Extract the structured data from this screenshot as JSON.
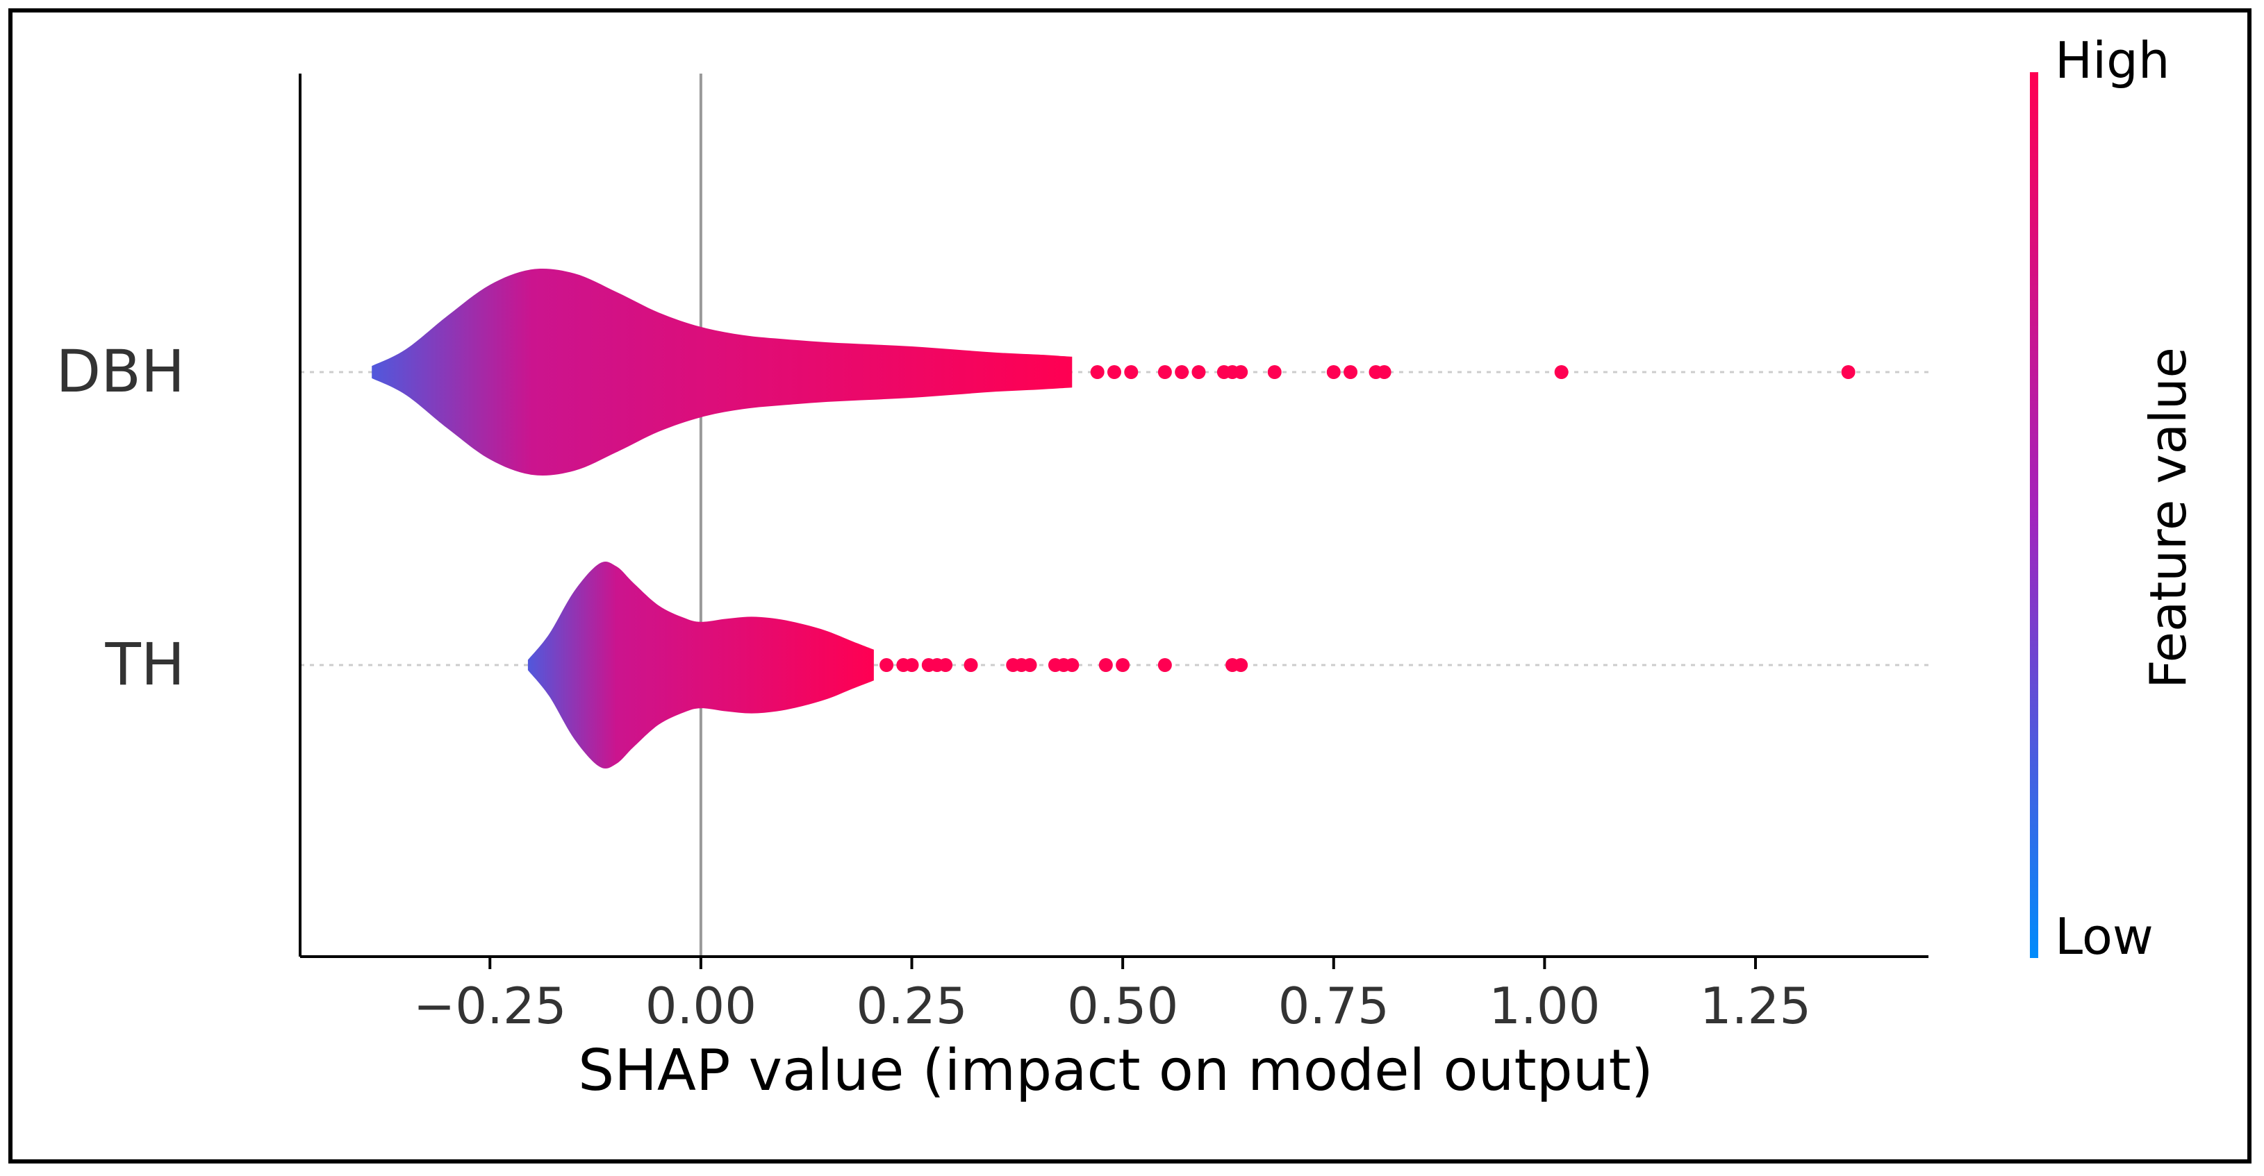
{
  "chart_data": {
    "type": "violin",
    "title": "",
    "xlabel": "SHAP value (impact on model output)",
    "ylabel": "",
    "xlim": [
      -0.475,
      1.455
    ],
    "xticks": [
      -0.25,
      0.0,
      0.25,
      0.5,
      0.75,
      1.0,
      1.25
    ],
    "xtick_labels": [
      "−0.25",
      "0.00",
      "0.25",
      "0.50",
      "0.75",
      "1.00",
      "1.25"
    ],
    "zero_line": 0.0,
    "features": [
      {
        "name": "DBH",
        "violin_range": [
          -0.39,
          0.44
        ],
        "violin_profile": [
          [
            -0.39,
            0.06
          ],
          [
            -0.35,
            0.22
          ],
          [
            -0.3,
            0.55
          ],
          [
            -0.25,
            0.85
          ],
          [
            -0.2,
            1.0
          ],
          [
            -0.15,
            0.96
          ],
          [
            -0.1,
            0.78
          ],
          [
            -0.05,
            0.58
          ],
          [
            0.0,
            0.44
          ],
          [
            0.05,
            0.36
          ],
          [
            0.1,
            0.32
          ],
          [
            0.15,
            0.29
          ],
          [
            0.2,
            0.27
          ],
          [
            0.25,
            0.25
          ],
          [
            0.3,
            0.22
          ],
          [
            0.35,
            0.19
          ],
          [
            0.4,
            0.17
          ],
          [
            0.44,
            0.15
          ]
        ],
        "outliers": [
          0.47,
          0.49,
          0.51,
          0.55,
          0.57,
          0.59,
          0.62,
          0.63,
          0.64,
          0.68,
          0.75,
          0.77,
          0.8,
          0.81,
          1.02,
          1.36
        ],
        "color_stops": [
          {
            "x": -0.39,
            "value": 0.25
          },
          {
            "x": -0.2,
            "value": 0.72
          },
          {
            "x": 0.1,
            "value": 0.85
          },
          {
            "x": 0.44,
            "value": 1.0
          }
        ]
      },
      {
        "name": "TH",
        "violin_range": [
          -0.205,
          0.205
        ],
        "violin_profile": [
          [
            -0.205,
            0.05
          ],
          [
            -0.18,
            0.3
          ],
          [
            -0.15,
            0.72
          ],
          [
            -0.12,
            0.99
          ],
          [
            -0.1,
            0.96
          ],
          [
            -0.08,
            0.8
          ],
          [
            -0.05,
            0.58
          ],
          [
            -0.02,
            0.46
          ],
          [
            0.0,
            0.42
          ],
          [
            0.03,
            0.45
          ],
          [
            0.06,
            0.47
          ],
          [
            0.09,
            0.45
          ],
          [
            0.12,
            0.4
          ],
          [
            0.15,
            0.33
          ],
          [
            0.18,
            0.23
          ],
          [
            0.205,
            0.15
          ]
        ],
        "outliers": [
          0.22,
          0.24,
          0.25,
          0.27,
          0.28,
          0.29,
          0.32,
          0.37,
          0.38,
          0.39,
          0.42,
          0.43,
          0.44,
          0.48,
          0.5,
          0.55,
          0.63,
          0.64
        ],
        "color_stops": [
          {
            "x": -0.205,
            "value": 0.25
          },
          {
            "x": -0.1,
            "value": 0.72
          },
          {
            "x": 0.05,
            "value": 0.85
          },
          {
            "x": 0.205,
            "value": 1.0
          }
        ]
      }
    ],
    "colorbar": {
      "label": "Feature value",
      "high_label": "High",
      "low_label": "Low",
      "low_color": "#008bfb",
      "mid_color": "#a224bd",
      "high_color": "#ff0052"
    },
    "colors": {
      "axis": "#000000",
      "zero_line": "#999999",
      "row_guide": "#cccccc",
      "tick_label": "#333333",
      "outlier": "#ff0052"
    }
  }
}
